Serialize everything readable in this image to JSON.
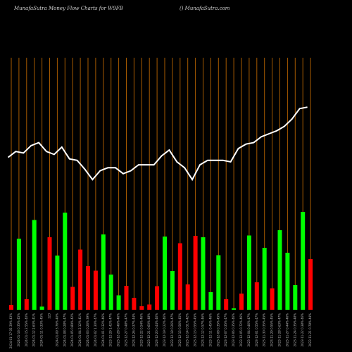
{
  "chart_data": {
    "type": "bar",
    "title": "MunafaSutra  Money Flow  Charts for W9FB",
    "credit": "() MunafaSutra.com",
    "bar_colors": {
      "up": "#00ff00",
      "down": "#ff0000"
    },
    "line_color": "#ffffff",
    "grid_color": "#a65a00",
    "bars": [
      {
        "label": "2024-01-17 05:39% 43%",
        "value": 1.4,
        "color": "down"
      },
      {
        "label": "2024-01-16 0.35% 45%",
        "value": 20.2,
        "color": "up"
      },
      {
        "label": "2024-01-15 2.55% 40%",
        "value": 3.0,
        "color": "down"
      },
      {
        "label": "2024-01-12 2.63% 41%",
        "value": 25.5,
        "color": "up"
      },
      {
        "label": "2024-01-11 0.33% 45%",
        "value": 0.9,
        "color": "up"
      },
      {
        "label": "223",
        "value": 20.6,
        "color": "down"
      },
      {
        "label": "2024-01-09 3.76% 40%",
        "value": 15.4,
        "color": "up"
      },
      {
        "label": "2024-01-08 0.28% 47%",
        "value": 27.6,
        "color": "up"
      },
      {
        "label": "2024-01-05 0.89% 42%",
        "value": 6.5,
        "color": "down"
      },
      {
        "label": "2024-01-04 2.12% 41%",
        "value": 17.1,
        "color": "down"
      },
      {
        "label": "2024-01-03 0.26% 39%",
        "value": 12.4,
        "color": "down"
      },
      {
        "label": "2024-01-02 1.30% 47%",
        "value": 11.1,
        "color": "down"
      },
      {
        "label": "2024-01-01 0.32% 46%",
        "value": 21.4,
        "color": "up"
      },
      {
        "label": "2023-12-29 1.42% 47%",
        "value": 10.0,
        "color": "up"
      },
      {
        "label": "2023-12-28 0.46% 46%",
        "value": 4.1,
        "color": "up"
      },
      {
        "label": "2023-12-27 0.48% 47%",
        "value": 6.8,
        "color": "down"
      },
      {
        "label": "2023-12-26 0.37% 44%",
        "value": 3.4,
        "color": "down"
      },
      {
        "label": "2023-12-22 0.54% 46%",
        "value": 1.0,
        "color": "down"
      },
      {
        "label": "2023-12-21 0.60% 48%",
        "value": 1.5,
        "color": "down"
      },
      {
        "label": "2023-12-20 0.44% 46%",
        "value": 6.7,
        "color": "down"
      },
      {
        "label": "2023-12-19 0.22% 46%",
        "value": 20.8,
        "color": "up"
      },
      {
        "label": "2023-12-18 0.26% 47%",
        "value": 11.0,
        "color": "up"
      },
      {
        "label": "2023-12-15 0.56% 45%",
        "value": 18.9,
        "color": "down"
      },
      {
        "label": "2023-12-14 0.51% 42%",
        "value": 7.2,
        "color": "down"
      },
      {
        "label": "2023-12-13 0.55% 45%",
        "value": 21.0,
        "color": "down"
      },
      {
        "label": "2023-12-12 0.57% 46%",
        "value": 20.6,
        "color": "up"
      },
      {
        "label": "2023-12-11 0.45% 46%",
        "value": 5.0,
        "color": "up"
      },
      {
        "label": "2023-12-08 0.35% 45%",
        "value": 15.5,
        "color": "up"
      },
      {
        "label": "2023-12-07 0.35% 47%",
        "value": 3.0,
        "color": "down"
      },
      {
        "label": "2023-12-06 0.35% 46%",
        "value": 0.4,
        "color": "up"
      },
      {
        "label": "2023-12-05 0.72% 46%",
        "value": 4.6,
        "color": "down"
      },
      {
        "label": "2023-12-04 0.46% 47%",
        "value": 21.1,
        "color": "up"
      },
      {
        "label": "2023-12-01 0.55% 47%",
        "value": 7.8,
        "color": "down"
      },
      {
        "label": "2023-11-30 0.35% 45%",
        "value": 17.6,
        "color": "up"
      },
      {
        "label": "2023-11-29 0.55% 45%",
        "value": 6.1,
        "color": "down"
      },
      {
        "label": "2023-11-28 0.63% 47%",
        "value": 22.6,
        "color": "up"
      },
      {
        "label": "2023-11-27 0.44% 46%",
        "value": 16.2,
        "color": "up"
      },
      {
        "label": "2023-11-24 0.35% 48%",
        "value": 7.0,
        "color": "up"
      },
      {
        "label": "2023-11-22 0.38% 46%",
        "value": 27.8,
        "color": "up"
      },
      {
        "label": "2023-11-21 0.78% 44%",
        "value": 14.4,
        "color": "down"
      }
    ],
    "line_values": [
      62,
      64,
      63.5,
      66,
      67,
      64,
      63,
      65.5,
      61.5,
      61,
      58,
      54.5,
      57.5,
      58.5,
      58.5,
      56.5,
      57.5,
      59.5,
      59.5,
      59.5,
      62.5,
      64.5,
      60.5,
      58.5,
      54.5,
      59.5,
      61,
      61,
      61,
      60.5,
      65,
      66.5,
      67,
      69,
      70,
      71,
      72.5,
      75,
      78.5,
      79
    ]
  }
}
